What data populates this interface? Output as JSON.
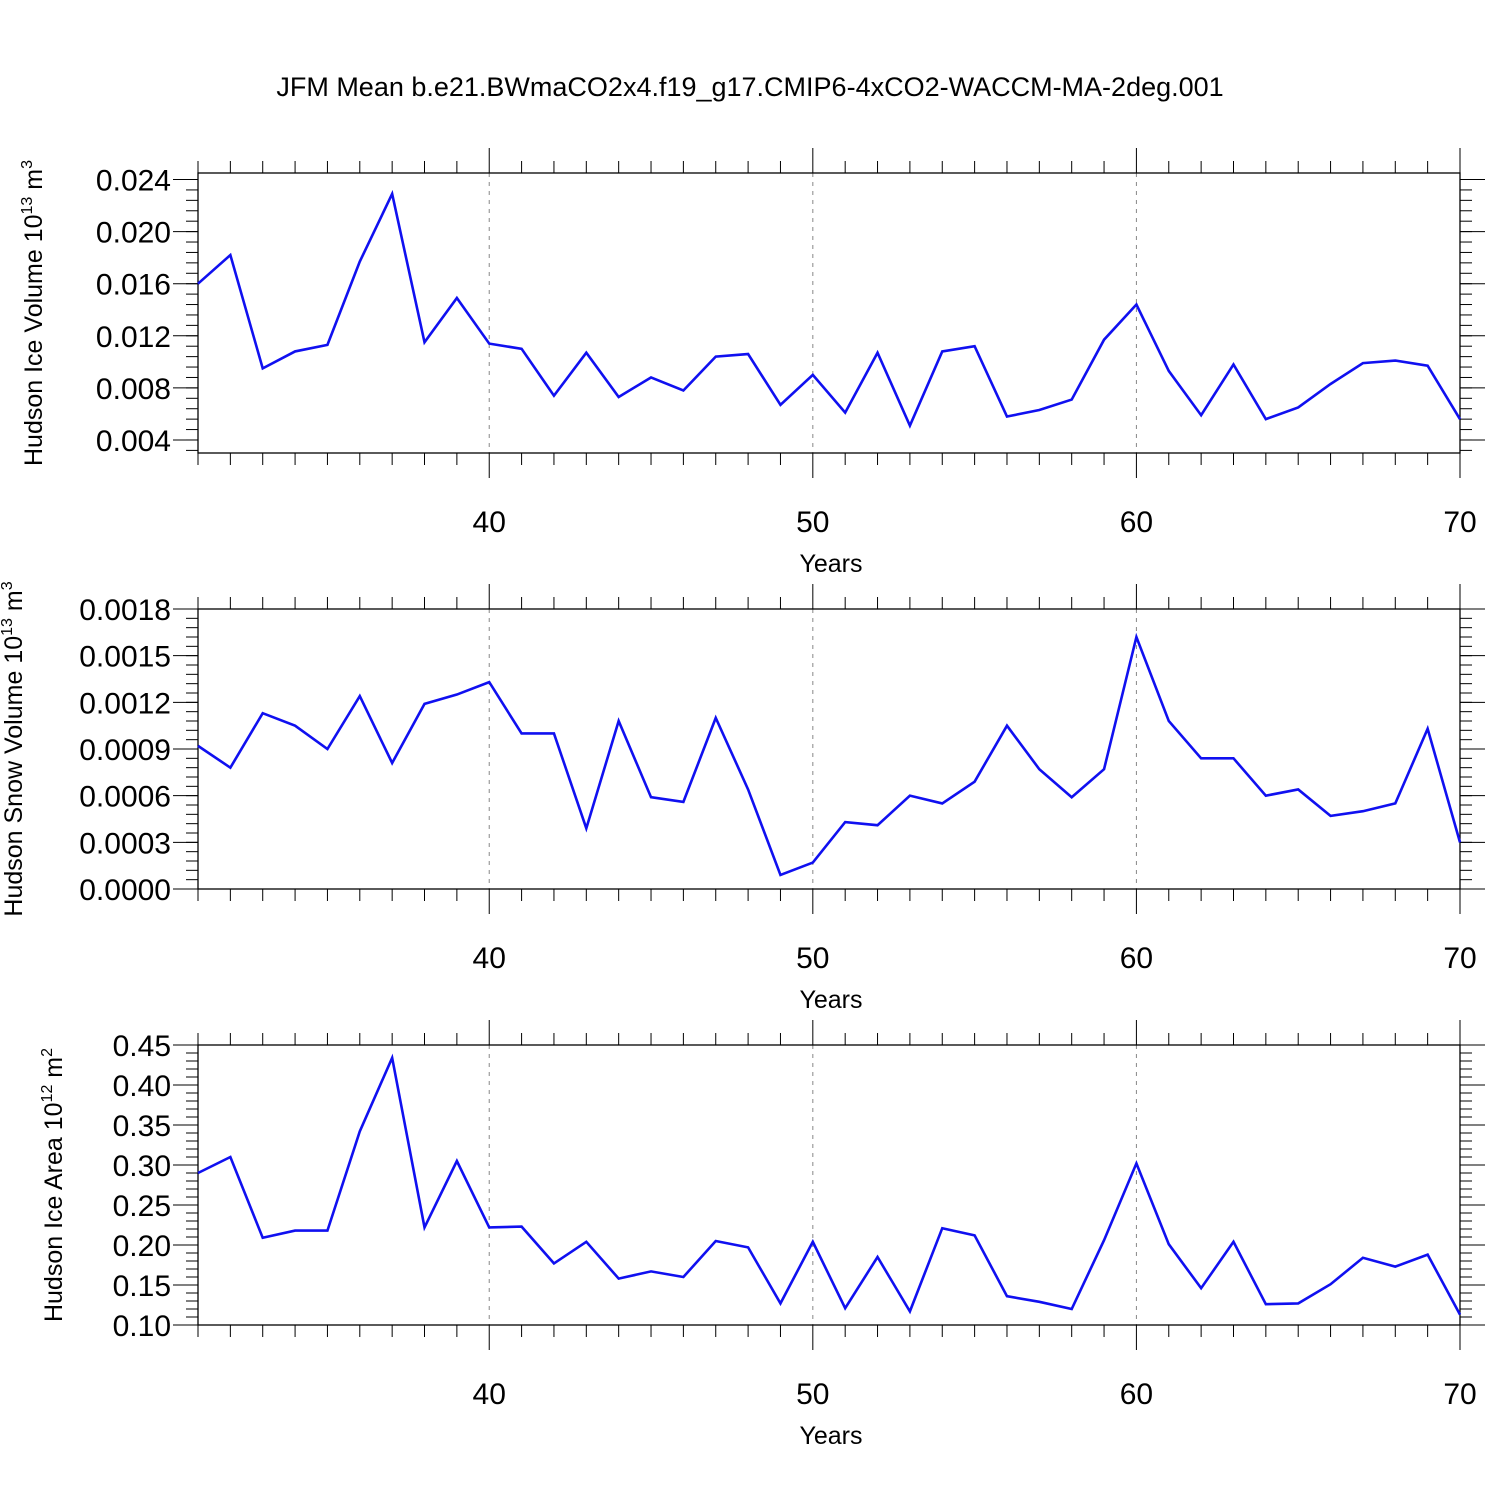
{
  "figure_title": "JFM Mean b.e21.BWmaCO2x4.f19_g17.CMIP6-4xCO2-WACCM-MA-2deg.001",
  "colors": {
    "line": "#1010f0",
    "axis": "#000000",
    "grid": "#888888"
  },
  "chart_data": [
    {
      "type": "line",
      "title": "",
      "ylabel": "Hudson Ice Volume",
      "yunit_base": "10",
      "yunit_exp": "13",
      "yunit_unit": "m",
      "yunit_unit_exp": "3",
      "xlabel": "Years",
      "xlim": [
        31,
        70
      ],
      "ylim": [
        0.003,
        0.0245
      ],
      "yticks": [
        0.004,
        0.008,
        0.012,
        0.016,
        0.02,
        0.024
      ],
      "ytick_labels": [
        "0.004",
        "0.008",
        "0.012",
        "0.016",
        "0.020",
        "0.024"
      ],
      "yminor_step": 0.0008,
      "xticks": [
        40,
        50,
        60,
        70
      ],
      "xtick_labels": [
        "40",
        "50",
        "60",
        "70"
      ],
      "grid_x": [
        40,
        50,
        60
      ],
      "x": [
        31,
        32,
        33,
        34,
        35,
        36,
        37,
        38,
        39,
        40,
        41,
        42,
        43,
        44,
        45,
        46,
        47,
        48,
        49,
        50,
        51,
        52,
        53,
        54,
        55,
        56,
        57,
        58,
        59,
        60,
        61,
        62,
        63,
        64,
        65,
        66,
        67,
        68,
        69,
        70
      ],
      "series": [
        {
          "name": "Hudson Ice Volume",
          "values": [
            0.016,
            0.0182,
            0.0095,
            0.0108,
            0.0113,
            0.0177,
            0.0229,
            0.0115,
            0.0149,
            0.0114,
            0.011,
            0.0074,
            0.0107,
            0.0073,
            0.0088,
            0.0078,
            0.0104,
            0.0106,
            0.0067,
            0.009,
            0.0061,
            0.0107,
            0.0051,
            0.0108,
            0.0112,
            0.0058,
            0.0063,
            0.0071,
            0.0117,
            0.0144,
            0.0093,
            0.0059,
            0.0098,
            0.0056,
            0.0065,
            0.0083,
            0.0099,
            0.0101,
            0.0097,
            0.0056
          ]
        }
      ]
    },
    {
      "type": "line",
      "title": "",
      "ylabel": "Hudson Snow Volume",
      "yunit_base": "10",
      "yunit_exp": "13",
      "yunit_unit": "m",
      "yunit_unit_exp": "3",
      "xlabel": "Years",
      "xlim": [
        31,
        70
      ],
      "ylim": [
        0.0,
        0.0018
      ],
      "yticks": [
        0.0,
        0.0003,
        0.0006,
        0.0009,
        0.0012,
        0.0015,
        0.0018
      ],
      "ytick_labels": [
        "0.0000",
        "0.0003",
        "0.0006",
        "0.0009",
        "0.0012",
        "0.0015",
        "0.0018"
      ],
      "yminor_step": 6e-05,
      "xticks": [
        40,
        50,
        60,
        70
      ],
      "xtick_labels": [
        "40",
        "50",
        "60",
        "70"
      ],
      "grid_x": [
        40,
        50,
        60
      ],
      "x": [
        31,
        32,
        33,
        34,
        35,
        36,
        37,
        38,
        39,
        40,
        41,
        42,
        43,
        44,
        45,
        46,
        47,
        48,
        49,
        50,
        51,
        52,
        53,
        54,
        55,
        56,
        57,
        58,
        59,
        60,
        61,
        62,
        63,
        64,
        65,
        66,
        67,
        68,
        69,
        70
      ],
      "series": [
        {
          "name": "Hudson Snow Volume",
          "values": [
            0.00092,
            0.00078,
            0.00113,
            0.00105,
            0.0009,
            0.00124,
            0.00081,
            0.00119,
            0.00125,
            0.00133,
            0.001,
            0.001,
            0.00039,
            0.00108,
            0.00059,
            0.00056,
            0.0011,
            0.00064,
            9e-05,
            0.00017,
            0.00043,
            0.00041,
            0.0006,
            0.00055,
            0.00069,
            0.00105,
            0.00077,
            0.00059,
            0.00077,
            0.00162,
            0.00108,
            0.00084,
            0.00084,
            0.0006,
            0.00064,
            0.00047,
            0.0005,
            0.00055,
            0.00103,
            0.0003
          ]
        }
      ]
    },
    {
      "type": "line",
      "title": "",
      "ylabel": "Hudson Ice Area",
      "yunit_base": "10",
      "yunit_exp": "12",
      "yunit_unit": "m",
      "yunit_unit_exp": "2",
      "xlabel": "Years",
      "xlim": [
        31,
        70
      ],
      "ylim": [
        0.1,
        0.45
      ],
      "yticks": [
        0.1,
        0.15,
        0.2,
        0.25,
        0.3,
        0.35,
        0.4,
        0.45
      ],
      "ytick_labels": [
        "0.10",
        "0.15",
        "0.20",
        "0.25",
        "0.30",
        "0.35",
        "0.40",
        "0.45"
      ],
      "yminor_step": 0.01,
      "xticks": [
        40,
        50,
        60,
        70
      ],
      "xtick_labels": [
        "40",
        "50",
        "60",
        "70"
      ],
      "grid_x": [
        40,
        50,
        60
      ],
      "x": [
        31,
        32,
        33,
        34,
        35,
        36,
        37,
        38,
        39,
        40,
        41,
        42,
        43,
        44,
        45,
        46,
        47,
        48,
        49,
        50,
        51,
        52,
        53,
        54,
        55,
        56,
        57,
        58,
        59,
        60,
        61,
        62,
        63,
        64,
        65,
        66,
        67,
        68,
        69,
        70
      ],
      "series": [
        {
          "name": "Hudson Ice Area",
          "values": [
            0.29,
            0.31,
            0.209,
            0.218,
            0.218,
            0.342,
            0.434,
            0.222,
            0.305,
            0.222,
            0.223,
            0.177,
            0.204,
            0.158,
            0.167,
            0.16,
            0.205,
            0.197,
            0.127,
            0.204,
            0.121,
            0.185,
            0.117,
            0.221,
            0.212,
            0.136,
            0.129,
            0.12,
            0.206,
            0.302,
            0.201,
            0.146,
            0.204,
            0.126,
            0.127,
            0.151,
            0.184,
            0.173,
            0.188,
            0.113
          ]
        }
      ]
    }
  ]
}
